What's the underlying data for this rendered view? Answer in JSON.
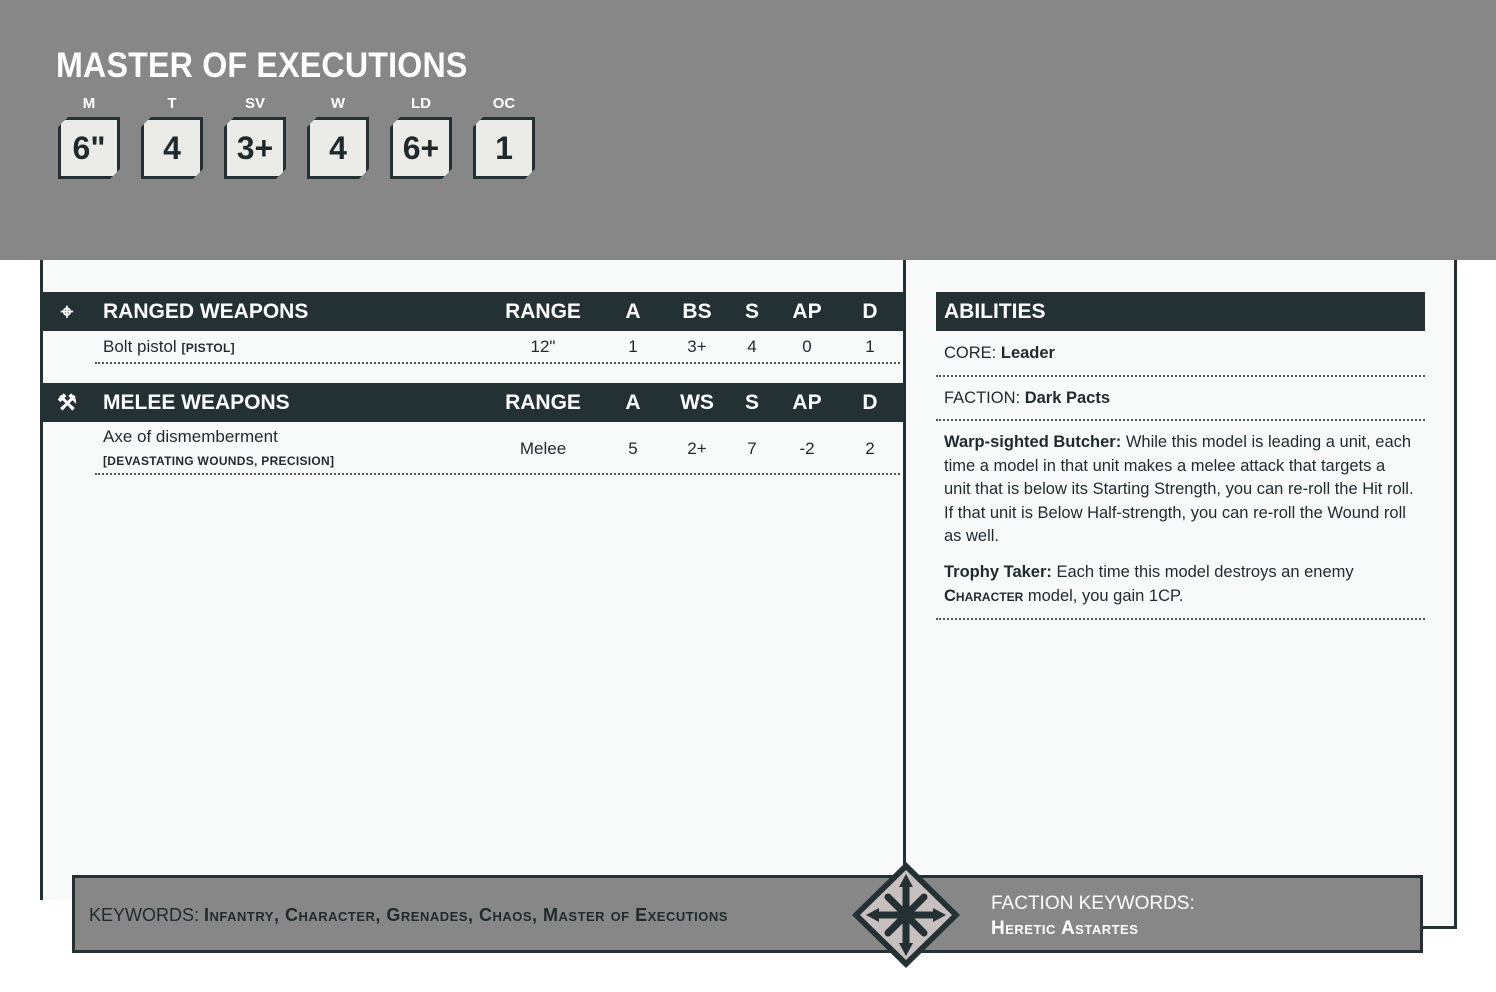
{
  "unit": {
    "name": "MASTER OF EXECUTIONS",
    "stats": [
      {
        "label": "M",
        "value": "6\""
      },
      {
        "label": "T",
        "value": "4"
      },
      {
        "label": "SV",
        "value": "3+"
      },
      {
        "label": "W",
        "value": "4"
      },
      {
        "label": "LD",
        "value": "6+"
      },
      {
        "label": "OC",
        "value": "1"
      }
    ]
  },
  "ranged": {
    "title": "RANGED WEAPONS",
    "icon": "crosshair-icon",
    "cols": [
      "RANGE",
      "A",
      "BS",
      "S",
      "AP",
      "D"
    ],
    "rows": [
      {
        "name": "Bolt pistol",
        "keywords": "[PISTOL]",
        "range": "12\"",
        "a": "1",
        "skill": "3+",
        "s": "4",
        "ap": "0",
        "d": "1"
      }
    ]
  },
  "melee": {
    "title": "MELEE WEAPONS",
    "icon": "crossed-axes-icon",
    "cols": [
      "RANGE",
      "A",
      "WS",
      "S",
      "AP",
      "D"
    ],
    "rows": [
      {
        "name": "Axe of dismemberment",
        "keywords": "[DEVASTATING WOUNDS, PRECISION]",
        "range": "Melee",
        "a": "5",
        "skill": "2+",
        "s": "7",
        "ap": "-2",
        "d": "2"
      }
    ]
  },
  "abilities": {
    "title": "ABILITIES",
    "core_label": "CORE:",
    "core": "Leader",
    "faction_label": "FACTION:",
    "faction": "Dark Pacts",
    "items": [
      {
        "name": "Warp-sighted Butcher:",
        "text": "While this model is leading a unit, each time a model in that unit makes a melee attack that targets a unit that is below its Starting Strength, you can re-roll the Hit roll. If that unit is Below Half-strength, you can re-roll the Wound roll as well."
      },
      {
        "name": "Trophy Taker:",
        "text_before": "Each time this model destroys an enemy",
        "keyword": "Character",
        "text_after": "model, you gain 1CP."
      }
    ]
  },
  "footer": {
    "keywords_label": "KEYWORDS:",
    "keywords": "Infantry, Character, Grenades, Chaos, Master of Executions",
    "faction_keywords_label": "FACTION KEYWORDS:",
    "faction_keywords": "Heretic Astartes",
    "emblem": "chaos-star-icon"
  },
  "colors": {
    "header_bg": "#878787",
    "dark": "#233034",
    "panel": "#f8faf9",
    "stat_box": "#ebece7"
  }
}
